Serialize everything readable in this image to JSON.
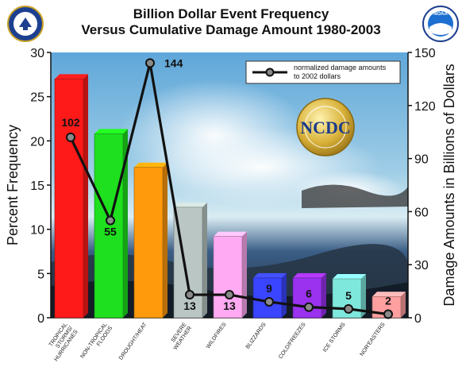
{
  "chart_data": {
    "type": "bar",
    "title_line1": "Billion Dollar Event Frequency",
    "title_line2": "Versus Cumulative Damage Amount 1980-2003",
    "ylabel_left": "Percent Frequency",
    "ylabel_right": "Damage Amounts in Billions of Dollars",
    "ylim_left": [
      0,
      30
    ],
    "ylim_right": [
      0,
      150
    ],
    "left_ticks": [
      "0",
      "5",
      "10",
      "15",
      "20",
      "25",
      "30"
    ],
    "right_ticks": [
      "0",
      "30",
      "60",
      "90",
      "120",
      "150"
    ],
    "grid": false,
    "legend_position": "top-right",
    "legend_text_1": "normalized damage amounts",
    "legend_text_2": "to 2002 dollars",
    "categories": [
      [
        "TROPICAL",
        "STORMS/",
        "HURRICANES"
      ],
      [
        "NON-TROPICAL",
        "FLOODS"
      ],
      [
        "DROUGHT/HEAT"
      ],
      [
        "SEVERE",
        "WEATHER"
      ],
      [
        "WILDFIRES"
      ],
      [
        "BLIZZARDS"
      ],
      [
        "COLD/FREEZES"
      ],
      [
        "ICE STORMS"
      ],
      [
        "NOR'EASTERS"
      ]
    ],
    "series": [
      {
        "type": "bar",
        "values": [
          27,
          20.8,
          17,
          12.5,
          9.2,
          4.5,
          4.5,
          4.4,
          2.4
        ]
      },
      {
        "type": "line",
        "values": [
          102,
          55,
          144,
          13,
          13,
          9,
          6,
          5,
          2
        ]
      }
    ],
    "data_labels": [
      "102",
      "55",
      "144",
      "13",
      "13",
      "9",
      "6",
      "5",
      "2"
    ],
    "bar_colors": [
      "#ff1a1a",
      "#1ee01e",
      "#ff9a0d",
      "#b9c6c3",
      "#ffaaf2",
      "#3a45ff",
      "#9a32f0",
      "#7fe8dd",
      "#ff9f9f"
    ]
  },
  "logos": {
    "left": "commerce-seal",
    "right": "noaa-logo",
    "center": "NCDC"
  }
}
